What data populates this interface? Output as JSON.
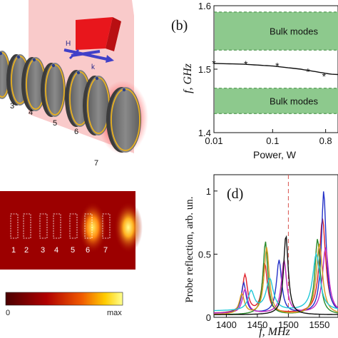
{
  "panel_a": {
    "field_labels": {
      "h": "H",
      "k": "k"
    },
    "resonators": [
      {
        "label": "3"
      },
      {
        "label": "4"
      },
      {
        "label": "5"
      },
      {
        "label": "6"
      },
      {
        "label": "7"
      }
    ]
  },
  "panel_b": {
    "label": "(b)",
    "band_labels": [
      "Bulk modes",
      "Bulk modes"
    ],
    "colors": {
      "band": "#8dc98d",
      "curve": "#111111"
    }
  },
  "panel_c": {
    "resonator_labels": [
      "1",
      "2",
      "3",
      "4",
      "5",
      "6",
      "7"
    ],
    "colorbar": {
      "min_label": "0",
      "max_label": "max"
    }
  },
  "panel_d": {
    "label": "(d)",
    "dashed_line_color": "#d9534f"
  },
  "chart_data": [
    {
      "type": "scatter",
      "xlabel": "Power, W",
      "ylabel": "f, GHz",
      "xscale": "log",
      "ylim": [
        1.4,
        1.6
      ],
      "x_ticks": [
        "0.01",
        "0.1",
        "0.8"
      ],
      "y_ticks": [
        "1.4",
        "1.5",
        "1.6"
      ],
      "bands": [
        {
          "name": "Bulk modes",
          "range": [
            1.53,
            1.59
          ]
        },
        {
          "name": "Bulk modes",
          "range": [
            1.43,
            1.47
          ]
        }
      ],
      "series": [
        {
          "x": [
            0.01,
            0.035,
            0.12,
            0.4,
            0.75
          ],
          "y": [
            1.509,
            1.508,
            1.505,
            1.496,
            1.489
          ]
        }
      ],
      "fit": {
        "x": [
          0.01,
          0.03,
          0.1,
          0.3,
          1.0
        ],
        "y": [
          1.509,
          1.508,
          1.505,
          1.5,
          1.492
        ]
      }
    },
    {
      "type": "line",
      "xlabel": "f, MHz",
      "ylabel": "Probe reflection, arb. un.",
      "xlim": [
        1380,
        1580
      ],
      "ylim": [
        0,
        1.05
      ],
      "x_ticks": [
        "1400",
        "1450",
        "1500",
        "1550"
      ],
      "y_ticks": [
        "0",
        "0.5",
        "1"
      ],
      "vline": 1500,
      "series": [
        {
          "color": "#e0202a",
          "peaks": [
            [
              1430,
              0.33,
              10
            ],
            [
              1462,
              0.42,
              10
            ],
            [
              1555,
              0.78,
              12
            ]
          ],
          "base": 0.03
        },
        {
          "color": "#2431c8",
          "peaks": [
            [
              1428,
              0.27,
              9
            ],
            [
              1485,
              0.45,
              10
            ],
            [
              1557,
              1.0,
              9
            ]
          ],
          "base": 0.03
        },
        {
          "color": "#2a8a2a",
          "peaks": [
            [
              1463,
              0.6,
              9
            ],
            [
              1547,
              0.62,
              10
            ]
          ],
          "base": 0.02
        },
        {
          "color": "#c028c0",
          "peaks": [
            [
              1430,
              0.22,
              10
            ],
            [
              1493,
              0.45,
              10
            ],
            [
              1560,
              0.55,
              12
            ]
          ],
          "base": 0.03
        },
        {
          "color": "#d49a20",
          "peaks": [
            [
              1425,
              0.18,
              10
            ],
            [
              1465,
              0.55,
              10
            ],
            [
              1550,
              0.58,
              12
            ]
          ],
          "base": 0.02
        },
        {
          "color": "#20c8d8",
          "peaks": [
            [
              1440,
              0.2,
              12
            ],
            [
              1470,
              0.3,
              14
            ],
            [
              1545,
              0.5,
              14
            ]
          ],
          "base": 0.05
        },
        {
          "color": "#111111",
          "peaks": [
            [
              1496,
              0.65,
              9
            ]
          ],
          "base": 0.02
        }
      ]
    }
  ]
}
